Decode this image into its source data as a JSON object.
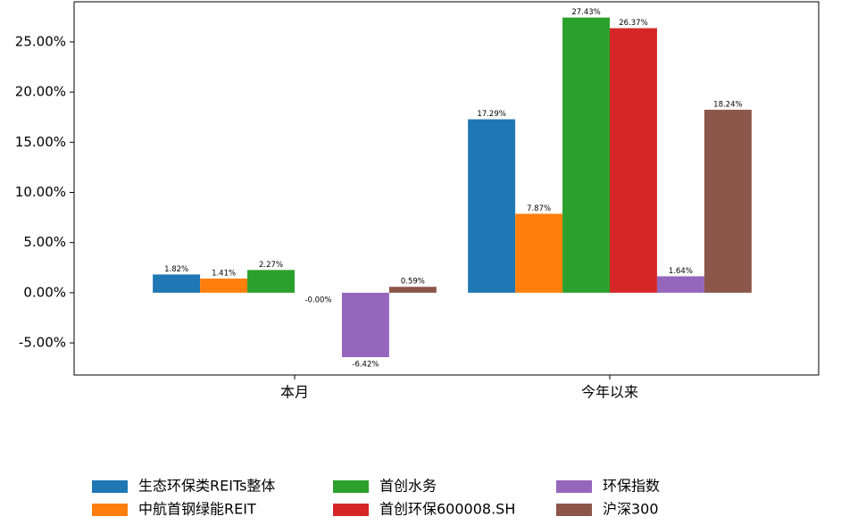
{
  "chart_data": {
    "type": "bar",
    "categories": [
      "本月",
      "今年以来"
    ],
    "series": [
      {
        "name": "生态环保类REITs整体",
        "color": "#1f77b4",
        "values": [
          1.82,
          17.29
        ],
        "value_labels": [
          "1.82%",
          "17.29%"
        ]
      },
      {
        "name": "中航首钢绿能REIT",
        "color": "#ff7f0e",
        "values": [
          1.41,
          7.87
        ],
        "value_labels": [
          "1.41%",
          "7.87%"
        ]
      },
      {
        "name": "首创水务",
        "color": "#2ca02c",
        "values": [
          2.27,
          27.43
        ],
        "value_labels": [
          "2.27%",
          "27.43%"
        ]
      },
      {
        "name": "首创环保600008.SH",
        "color": "#d62728",
        "values": [
          0,
          26.37
        ],
        "value_labels": [
          "-0.00%",
          "26.37%"
        ]
      },
      {
        "name": "环保指数",
        "color": "#9467bd",
        "values": [
          -6.42,
          1.64
        ],
        "value_labels": [
          "-6.42%",
          "1.64%"
        ]
      },
      {
        "name": "沪深300",
        "color": "#8c564b",
        "values": [
          0.59,
          18.24
        ],
        "value_labels": [
          "0.59%",
          "18.24%"
        ]
      }
    ],
    "ylim": [
      -8.2,
      29.0
    ],
    "yticks": [
      {
        "value": -5,
        "label": "-5.00%"
      },
      {
        "value": 0,
        "label": "0.00%"
      },
      {
        "value": 5,
        "label": "5.00%"
      },
      {
        "value": 10,
        "label": "10.00%"
      },
      {
        "value": 15,
        "label": "15.00%"
      },
      {
        "value": 20,
        "label": "20.00%"
      },
      {
        "value": 25,
        "label": "25.00%"
      }
    ],
    "legend": "lower center",
    "grid": false
  }
}
